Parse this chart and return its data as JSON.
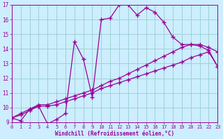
{
  "xlabel": "Windchill (Refroidissement éolien,°C)",
  "background_color": "#cceeff",
  "line_color": "#990099",
  "grid_color": "#99cccc",
  "xlim": [
    0,
    23
  ],
  "ylim": [
    9,
    17
  ],
  "xticks": [
    0,
    1,
    2,
    3,
    4,
    5,
    6,
    7,
    8,
    9,
    10,
    11,
    12,
    13,
    14,
    15,
    16,
    17,
    18,
    19,
    20,
    21,
    22,
    23
  ],
  "yticks": [
    9,
    10,
    11,
    12,
    13,
    14,
    15,
    16,
    17
  ],
  "curve1_x": [
    0,
    1,
    2,
    3,
    4,
    5,
    6,
    7,
    8,
    9,
    10,
    11,
    12,
    13,
    14,
    15,
    16,
    17,
    18,
    19,
    20,
    21,
    22,
    23
  ],
  "curve1_y": [
    9.3,
    9.1,
    9.9,
    10.1,
    8.9,
    9.2,
    9.6,
    14.5,
    13.3,
    10.7,
    16.0,
    16.1,
    17.0,
    17.0,
    16.3,
    16.8,
    16.5,
    15.8,
    14.8,
    14.3,
    14.3,
    14.2,
    13.9,
    12.8
  ],
  "curve2_x": [
    0,
    1,
    2,
    3,
    4,
    5,
    6,
    7,
    8,
    9,
    10,
    11,
    12,
    13,
    14,
    15,
    16,
    17,
    18,
    19,
    20,
    21,
    22,
    23
  ],
  "curve2_y": [
    9.3,
    9.5,
    9.8,
    10.1,
    10.1,
    10.2,
    10.4,
    10.6,
    10.8,
    11.0,
    11.3,
    11.5,
    11.7,
    11.9,
    12.1,
    12.3,
    12.5,
    12.7,
    12.9,
    13.1,
    13.4,
    13.6,
    13.8,
    12.8
  ],
  "curve3_x": [
    0,
    1,
    2,
    3,
    4,
    5,
    6,
    7,
    8,
    9,
    10,
    11,
    12,
    13,
    14,
    15,
    16,
    17,
    18,
    19,
    20,
    21,
    22,
    23
  ],
  "curve3_y": [
    9.3,
    9.6,
    9.9,
    10.2,
    10.2,
    10.4,
    10.6,
    10.8,
    11.0,
    11.2,
    11.5,
    11.8,
    12.0,
    12.3,
    12.6,
    12.9,
    13.2,
    13.5,
    13.8,
    14.1,
    14.3,
    14.3,
    14.1,
    13.8
  ],
  "markersize": 3,
  "linewidth": 0.9
}
